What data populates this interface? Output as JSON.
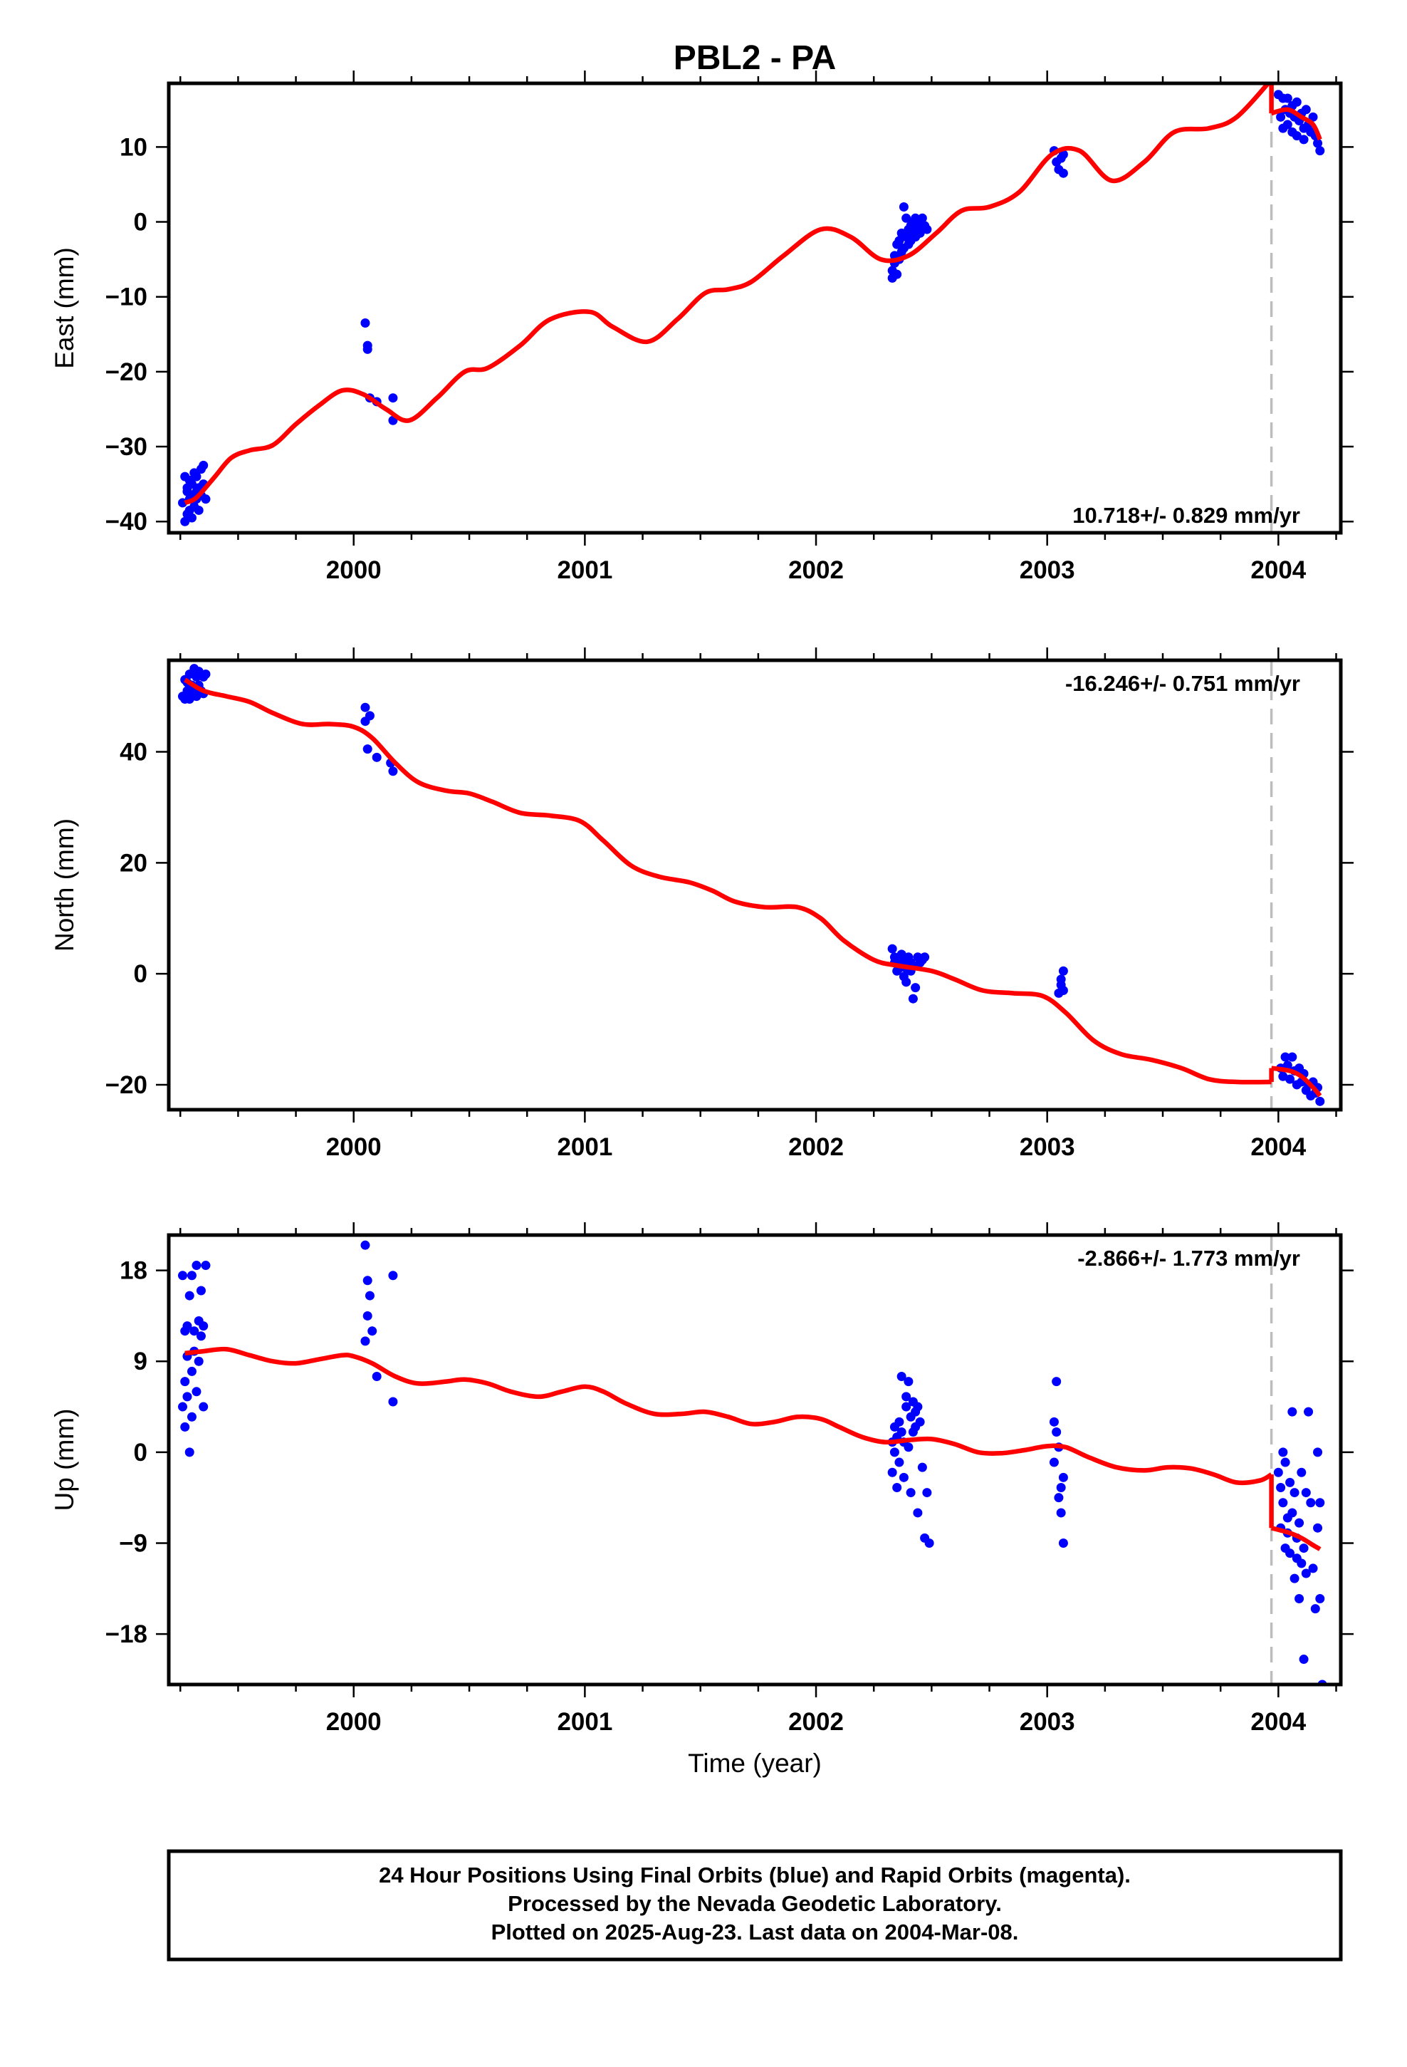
{
  "chart_data": {
    "title": "PBL2 - PA",
    "type": "scatter",
    "x_label": "Time (year)",
    "x_range": [
      1999.2,
      2004.27
    ],
    "x_ticks": [
      2000,
      2001,
      2002,
      2003,
      2004
    ],
    "x_tick_labels": [
      "2000",
      "2001",
      "2002",
      "2003",
      "2004"
    ],
    "grid": false,
    "marker_color": "#0000ff",
    "model_color": "#ff0000",
    "event_line": {
      "x": 2003.97,
      "color": "#bdbdbd",
      "style": "dashed"
    },
    "panels": [
      {
        "id": "east",
        "ylabel": "East (mm)",
        "ylim": [
          -41.5,
          18.5
        ],
        "yticks": [
          10,
          0,
          -10,
          -20,
          -30,
          -40
        ],
        "ytick_labels": [
          "10",
          "0",
          "−10",
          "−20",
          "−30",
          "−40"
        ],
        "rate_text": "10.718+/- 0.829 mm/yr",
        "rate_position": "bottom-right",
        "model": {
          "x": [
            1999.27,
            1999.32,
            1999.4,
            1999.47,
            1999.55,
            1999.65,
            1999.75,
            1999.85,
            1999.95,
            2000.04,
            2000.14,
            2000.24,
            2000.36,
            2000.48,
            2000.58,
            2000.72,
            2000.85,
            2001.02,
            2001.12,
            2001.27,
            2001.4,
            2001.52,
            2001.62,
            2001.72,
            2001.86,
            2002.02,
            2002.15,
            2002.28,
            2002.4,
            2002.52,
            2002.63,
            2002.75,
            2002.88,
            2003.02,
            2003.14,
            2003.28,
            2003.42,
            2003.55,
            2003.7,
            2003.82,
            2003.97
          ],
          "y": [
            -37.5,
            -36.8,
            -34.0,
            -31.5,
            -30.5,
            -29.8,
            -27.0,
            -24.5,
            -22.5,
            -23.0,
            -25.0,
            -26.5,
            -23.5,
            -20.0,
            -19.5,
            -16.5,
            -13.0,
            -12.0,
            -14.0,
            -16.0,
            -13.0,
            -9.5,
            -9.0,
            -8.0,
            -4.5,
            -1.0,
            -2.0,
            -5.0,
            -4.5,
            -1.5,
            1.5,
            2.0,
            4.0,
            9.0,
            9.5,
            5.5,
            8.0,
            12.0,
            12.5,
            14.0,
            19.0
          ]
        },
        "model_post": {
          "x": [
            2003.97,
            2004.04,
            2004.1,
            2004.15,
            2004.18
          ],
          "y": [
            14.5,
            15.0,
            14.0,
            13.0,
            11.0
          ]
        },
        "points": {
          "x": [
            1999.26,
            1999.27,
            1999.27,
            1999.28,
            1999.28,
            1999.28,
            1999.29,
            1999.29,
            1999.29,
            1999.3,
            1999.3,
            1999.3,
            1999.31,
            1999.31,
            1999.32,
            1999.32,
            1999.32,
            1999.33,
            1999.33,
            1999.34,
            1999.34,
            1999.35,
            1999.35,
            1999.36,
            2000.05,
            2000.06,
            2000.06,
            2000.07,
            2000.1,
            2000.17,
            2000.17,
            2002.33,
            2002.33,
            2002.34,
            2002.34,
            2002.35,
            2002.35,
            2002.36,
            2002.36,
            2002.37,
            2002.37,
            2002.38,
            2002.38,
            2002.39,
            2002.39,
            2002.4,
            2002.4,
            2002.41,
            2002.41,
            2002.42,
            2002.42,
            2002.43,
            2002.43,
            2002.44,
            2002.44,
            2002.45,
            2002.46,
            2002.47,
            2002.48,
            2003.03,
            2003.04,
            2003.05,
            2003.06,
            2003.07,
            2003.07,
            2004.0,
            2004.01,
            2004.02,
            2004.02,
            2004.03,
            2004.04,
            2004.04,
            2004.05,
            2004.06,
            2004.06,
            2004.07,
            2004.08,
            2004.08,
            2004.09,
            2004.1,
            2004.11,
            2004.11,
            2004.12,
            2004.13,
            2004.14,
            2004.15,
            2004.16,
            2004.17,
            2004.18
          ],
          "y": [
            -37.5,
            -40.0,
            -34.0,
            -35.5,
            -39.0,
            -36.0,
            -38.5,
            -34.5,
            -37.0,
            -35.0,
            -39.5,
            -36.5,
            -33.5,
            -38.0,
            -36.0,
            -37.0,
            -34.0,
            -35.5,
            -38.5,
            -36.5,
            -33.0,
            -35.0,
            -32.5,
            -37.0,
            -13.5,
            -16.5,
            -17.0,
            -23.5,
            -24.0,
            -23.5,
            -26.5,
            -6.5,
            -7.5,
            -5.5,
            -4.5,
            -3.0,
            -7.0,
            -2.5,
            -5.0,
            -1.5,
            -4.0,
            -3.5,
            2.0,
            -2.0,
            0.5,
            -1.0,
            -3.0,
            -0.5,
            -2.5,
            0.0,
            -1.5,
            0.5,
            -2.0,
            -1.0,
            0.0,
            -1.5,
            0.5,
            -0.5,
            -1.0,
            9.5,
            8.0,
            7.0,
            8.5,
            6.5,
            9.0,
            17.0,
            14.0,
            16.5,
            12.5,
            15.0,
            16.5,
            13.0,
            14.5,
            15.5,
            12.0,
            14.0,
            16.0,
            11.5,
            13.5,
            14.5,
            12.5,
            11.0,
            15.0,
            13.0,
            12.0,
            14.0,
            11.5,
            10.5,
            9.5
          ]
        }
      },
      {
        "id": "north",
        "ylabel": "North (mm)",
        "ylim": [
          -24.5,
          56.5
        ],
        "yticks": [
          40,
          20,
          0,
          -20
        ],
        "ytick_labels": [
          "40",
          "20",
          "0",
          "−20"
        ],
        "rate_text": "-16.246+/- 0.751 mm/yr",
        "rate_position": "top-right",
        "model": {
          "x": [
            1999.27,
            1999.35,
            1999.45,
            1999.55,
            1999.65,
            1999.78,
            1999.9,
            2000.0,
            2000.08,
            2000.18,
            2000.28,
            2000.4,
            2000.5,
            2000.6,
            2000.72,
            2000.85,
            2000.98,
            2001.08,
            2001.2,
            2001.32,
            2001.45,
            2001.55,
            2001.65,
            2001.78,
            2001.92,
            2002.02,
            2002.12,
            2002.25,
            2002.35,
            2002.5,
            2002.6,
            2002.72,
            2002.85,
            2002.98,
            2003.08,
            2003.2,
            2003.32,
            2003.45,
            2003.58,
            2003.7,
            2003.82,
            2003.97
          ],
          "y": [
            53.0,
            51.0,
            50.0,
            49.0,
            47.0,
            45.0,
            45.0,
            44.5,
            42.5,
            38.0,
            34.5,
            33.0,
            32.5,
            31.0,
            29.0,
            28.5,
            27.5,
            24.0,
            19.5,
            17.5,
            16.5,
            15.0,
            13.0,
            12.0,
            12.0,
            10.0,
            6.0,
            2.5,
            1.5,
            0.5,
            -1.0,
            -3.0,
            -3.5,
            -4.0,
            -7.0,
            -12.0,
            -14.5,
            -15.5,
            -17.0,
            -19.0,
            -19.5,
            -19.5
          ]
        },
        "model_post": {
          "x": [
            2003.97,
            2004.05,
            2004.1,
            2004.15,
            2004.18
          ],
          "y": [
            -17.0,
            -17.5,
            -18.5,
            -20.5,
            -22.0
          ]
        },
        "points": {
          "x": [
            1999.26,
            1999.27,
            1999.27,
            1999.28,
            1999.28,
            1999.29,
            1999.29,
            1999.3,
            1999.3,
            1999.31,
            1999.31,
            1999.32,
            1999.32,
            1999.33,
            1999.33,
            1999.34,
            1999.35,
            1999.35,
            1999.36,
            2000.05,
            2000.05,
            2000.06,
            2000.07,
            2000.1,
            2000.16,
            2000.17,
            2002.33,
            2002.34,
            2002.34,
            2002.35,
            2002.36,
            2002.36,
            2002.37,
            2002.38,
            2002.38,
            2002.39,
            2002.39,
            2002.4,
            2002.41,
            2002.41,
            2002.42,
            2002.42,
            2002.43,
            2002.44,
            2002.45,
            2002.46,
            2002.47,
            2003.05,
            2003.06,
            2003.06,
            2003.07,
            2003.07,
            2004.01,
            2004.02,
            2004.03,
            2004.04,
            2004.05,
            2004.06,
            2004.07,
            2004.08,
            2004.09,
            2004.1,
            2004.11,
            2004.12,
            2004.13,
            2004.14,
            2004.15,
            2004.16,
            2004.17,
            2004.18
          ],
          "y": [
            50.0,
            53.0,
            49.5,
            52.5,
            51.0,
            54.0,
            49.5,
            52.0,
            50.5,
            55.0,
            51.5,
            53.5,
            50.0,
            54.5,
            52.0,
            51.0,
            53.5,
            50.5,
            54.0,
            48.0,
            45.5,
            40.5,
            46.5,
            39.0,
            38.0,
            36.5,
            4.5,
            2.0,
            3.0,
            0.5,
            2.5,
            1.0,
            3.5,
            -0.5,
            2.0,
            1.0,
            -1.5,
            3.0,
            0.5,
            2.0,
            -4.5,
            1.5,
            -2.5,
            3.0,
            2.0,
            2.5,
            3.0,
            -3.5,
            -2.0,
            -1.0,
            -3.0,
            0.5,
            -17.0,
            -18.5,
            -15.0,
            -16.5,
            -19.0,
            -15.0,
            -17.5,
            -20.0,
            -17.0,
            -19.5,
            -18.0,
            -21.0,
            -20.0,
            -22.0,
            -19.5,
            -21.5,
            -20.5,
            -23.0
          ]
        }
      },
      {
        "id": "up",
        "ylabel": "Up (mm)",
        "ylim": [
          -23.0,
          21.5
        ],
        "yticks": [
          18,
          9,
          0,
          -9,
          -18
        ],
        "ytick_labels": [
          "18",
          "9",
          "0",
          "−9",
          "−18"
        ],
        "rate_text": "-2.866+/- 1.773 mm/yr",
        "rate_position": "top-right",
        "model": {
          "x": [
            1999.27,
            1999.35,
            1999.45,
            1999.55,
            1999.65,
            1999.75,
            1999.85,
            1999.95,
            2000.0,
            2000.08,
            2000.18,
            2000.28,
            2000.4,
            2000.48,
            2000.58,
            2000.68,
            2000.8,
            2000.9,
            2001.0,
            2001.08,
            2001.18,
            2001.3,
            2001.42,
            2001.52,
            2001.62,
            2001.72,
            2001.82,
            2001.92,
            2002.02,
            2002.1,
            2002.2,
            2002.3,
            2002.4,
            2002.5,
            2002.6,
            2002.7,
            2002.8,
            2002.9,
            2003.0,
            2003.08,
            2003.18,
            2003.3,
            2003.42,
            2003.52,
            2003.62,
            2003.72,
            2003.82,
            2003.92,
            2003.97
          ],
          "y": [
            9.8,
            10.0,
            10.2,
            9.6,
            9.0,
            8.8,
            9.2,
            9.6,
            9.5,
            8.8,
            7.5,
            6.8,
            7.0,
            7.2,
            6.8,
            6.0,
            5.5,
            6.0,
            6.5,
            6.0,
            4.8,
            3.8,
            3.8,
            4.0,
            3.5,
            2.8,
            3.0,
            3.5,
            3.3,
            2.5,
            1.5,
            1.0,
            1.2,
            1.3,
            0.8,
            0.0,
            -0.1,
            0.2,
            0.6,
            0.5,
            -0.5,
            -1.5,
            -1.8,
            -1.5,
            -1.6,
            -2.2,
            -3.0,
            -2.8,
            -2.2
          ]
        },
        "model_post": {
          "x": [
            2003.97,
            2004.05,
            2004.1,
            2004.15,
            2004.18
          ],
          "y": [
            -7.5,
            -8.0,
            -8.5,
            -9.2,
            -9.6
          ]
        },
        "points": {
          "x": [
            1999.26,
            1999.26,
            1999.27,
            1999.27,
            1999.27,
            1999.28,
            1999.28,
            1999.28,
            1999.29,
            1999.29,
            1999.3,
            1999.3,
            1999.3,
            1999.31,
            1999.31,
            1999.32,
            1999.32,
            1999.33,
            1999.33,
            1999.34,
            1999.34,
            1999.35,
            1999.35,
            1999.36,
            2000.05,
            2000.05,
            2000.06,
            2000.06,
            2000.07,
            2000.08,
            2000.1,
            2000.17,
            2000.17,
            2002.33,
            2002.33,
            2002.34,
            2002.34,
            2002.35,
            2002.35,
            2002.36,
            2002.36,
            2002.37,
            2002.37,
            2002.38,
            2002.38,
            2002.39,
            2002.39,
            2002.4,
            2002.4,
            2002.41,
            2002.41,
            2002.42,
            2002.42,
            2002.43,
            2002.43,
            2002.44,
            2002.44,
            2002.45,
            2002.46,
            2002.47,
            2002.48,
            2002.49,
            2003.03,
            2003.03,
            2003.04,
            2003.04,
            2003.05,
            2003.05,
            2003.06,
            2003.06,
            2003.07,
            2003.07,
            2004.0,
            2004.01,
            2004.01,
            2004.02,
            2004.02,
            2004.03,
            2004.03,
            2004.04,
            2004.04,
            2004.05,
            2004.05,
            2004.06,
            2004.06,
            2004.07,
            2004.07,
            2004.08,
            2004.08,
            2004.09,
            2004.09,
            2004.1,
            2004.1,
            2004.11,
            2004.11,
            2004.12,
            2004.12,
            2004.13,
            2004.14,
            2004.15,
            2004.16,
            2004.17,
            2004.17,
            2004.18,
            2004.18,
            2004.19
          ],
          "y": [
            17.5,
            4.5,
            12.0,
            7.0,
            2.5,
            9.5,
            5.5,
            12.5,
            0.0,
            15.5,
            8.0,
            3.5,
            17.5,
            10.0,
            12.0,
            6.0,
            18.5,
            13.0,
            9.0,
            11.5,
            16.0,
            12.5,
            4.5,
            18.5,
            20.5,
            11.0,
            13.5,
            17.0,
            15.5,
            12.0,
            7.5,
            17.5,
            5.0,
            1.0,
            -2.0,
            2.5,
            0.0,
            1.5,
            -3.5,
            3.0,
            -1.0,
            2.0,
            7.5,
            -2.5,
            1.0,
            4.5,
            5.5,
            7.0,
            0.5,
            3.5,
            -4.0,
            5.0,
            2.0,
            4.0,
            2.5,
            -6.0,
            4.5,
            3.0,
            -1.5,
            -8.5,
            -4.0,
            -9.0,
            3.0,
            -1.0,
            7.0,
            2.0,
            -4.5,
            0.5,
            -3.5,
            -6.0,
            -9.0,
            -2.5,
            -2.0,
            -7.5,
            -3.5,
            0.0,
            -5.0,
            -9.5,
            -1.0,
            -6.5,
            -8.0,
            -3.0,
            -10.0,
            4.0,
            -6.0,
            -12.5,
            -4.0,
            -8.5,
            -10.5,
            -14.5,
            -7.0,
            -11.0,
            -2.0,
            -9.5,
            -20.5,
            -4.0,
            -12.0,
            4.0,
            -5.0,
            -11.5,
            -15.5,
            -7.5,
            0.0,
            -14.5,
            -5.0,
            -23.0
          ]
        }
      }
    ],
    "footer_lines": [
      "24 Hour Positions Using Final Orbits (blue) and Rapid Orbits (magenta).",
      "Processed by the Nevada Geodetic Laboratory.",
      "Plotted on 2025-Aug-23. Last data on 2004-Mar-08."
    ]
  }
}
